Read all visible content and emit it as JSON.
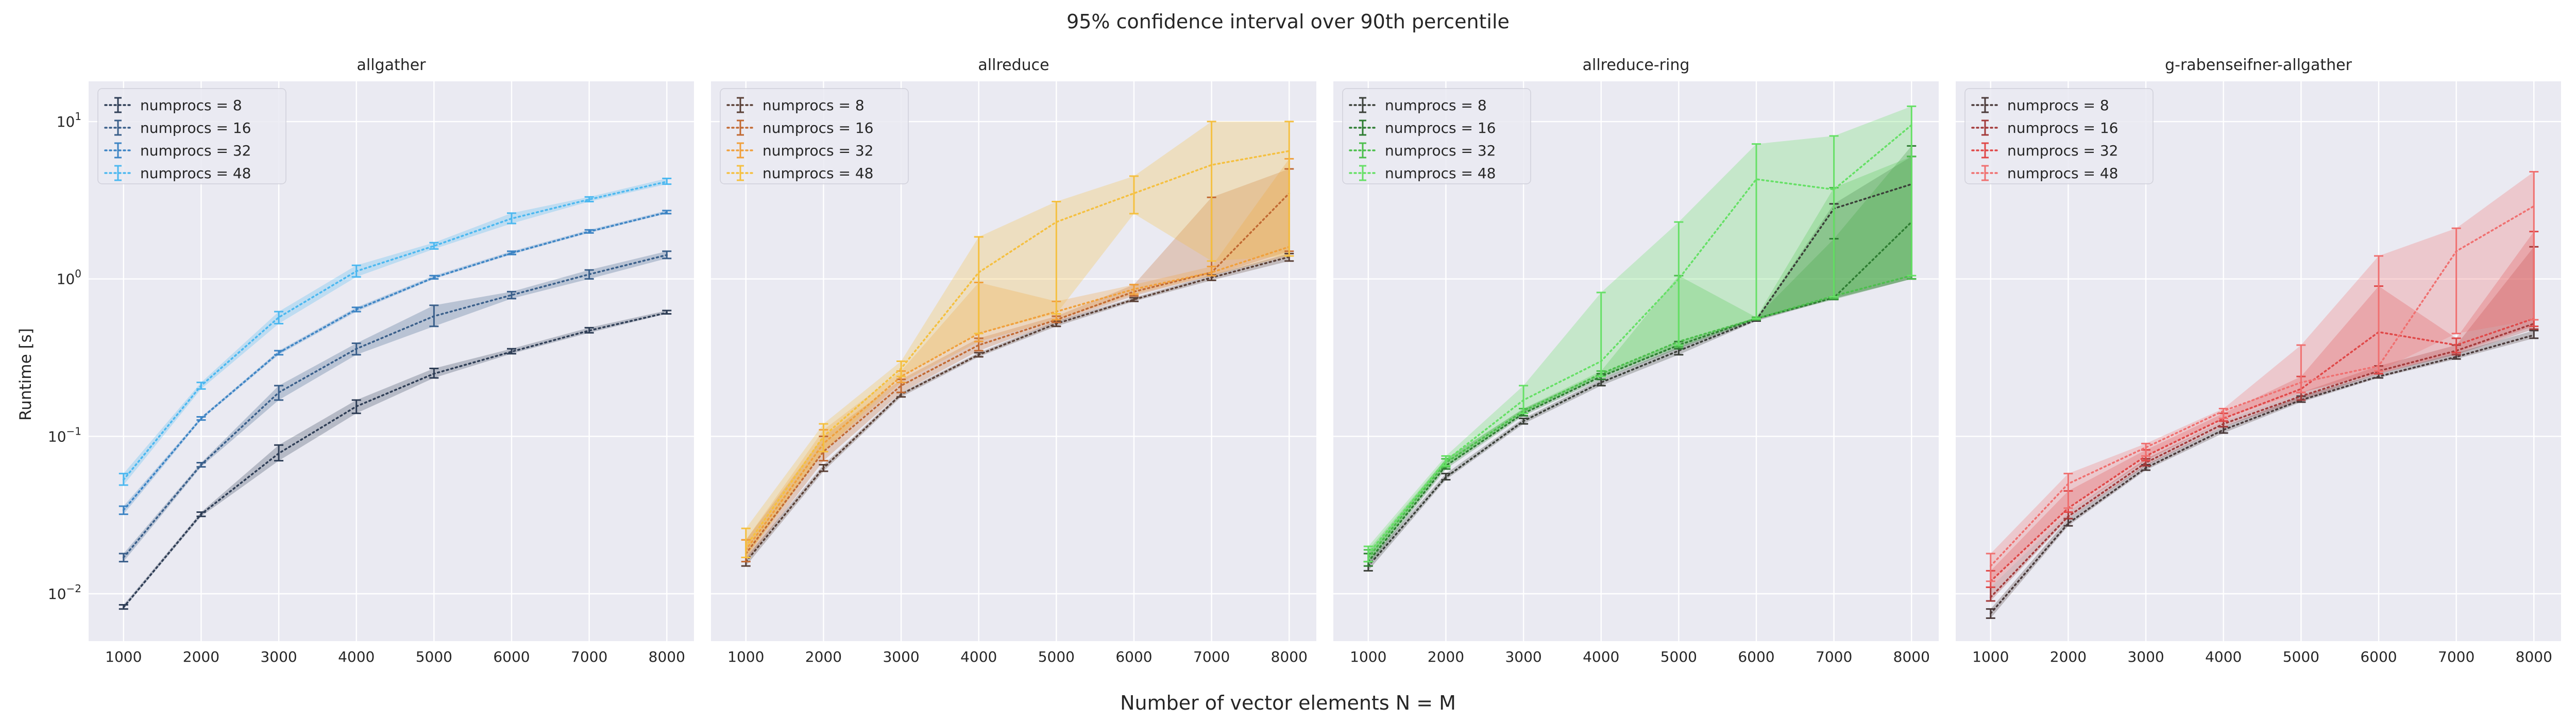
{
  "figure": {
    "suptitle": "95% confidence interval over 90th percentile",
    "xlabel": "Number of vector elements N = M",
    "ylabel": "Runtime [s]"
  },
  "chart_data": [
    {
      "type": "line",
      "title": "allgather",
      "yscale": "log",
      "ylim": [
        0.005,
        18
      ],
      "xlim": [
        550,
        8350
      ],
      "x": [
        1000,
        2000,
        3000,
        4000,
        5000,
        6000,
        7000,
        8000
      ],
      "x_ticks": [
        "1000",
        "2000",
        "3000",
        "4000",
        "5000",
        "6000",
        "7000",
        "8000"
      ],
      "y_ticks": [
        "10^-2",
        "10^-1",
        "10^0",
        "10^1"
      ],
      "grid": true,
      "legend_position": "top-left",
      "series": [
        {
          "name": "numprocs = 8",
          "color": "#2f3e56",
          "values": [
            0.0082,
            0.032,
            0.078,
            0.155,
            0.25,
            0.345,
            0.47,
            0.61
          ],
          "ci_low": [
            0.008,
            0.031,
            0.07,
            0.14,
            0.235,
            0.335,
            0.455,
            0.6
          ],
          "ci_high": [
            0.0085,
            0.033,
            0.088,
            0.17,
            0.27,
            0.36,
            0.49,
            0.63
          ]
        },
        {
          "name": "numprocs = 16",
          "color": "#3a5f8a",
          "values": [
            0.017,
            0.066,
            0.19,
            0.36,
            0.58,
            0.79,
            1.07,
            1.42
          ],
          "ci_low": [
            0.016,
            0.064,
            0.17,
            0.33,
            0.5,
            0.75,
            1.0,
            1.35
          ],
          "ci_high": [
            0.018,
            0.068,
            0.21,
            0.39,
            0.68,
            0.83,
            1.14,
            1.5
          ]
        },
        {
          "name": "numprocs = 32",
          "color": "#3d84c4",
          "values": [
            0.034,
            0.13,
            0.34,
            0.64,
            1.02,
            1.46,
            2.0,
            2.65
          ],
          "ci_low": [
            0.032,
            0.127,
            0.33,
            0.62,
            1.0,
            1.43,
            1.96,
            2.6
          ],
          "ci_high": [
            0.036,
            0.133,
            0.35,
            0.66,
            1.05,
            1.5,
            2.05,
            2.72
          ]
        },
        {
          "name": "numprocs = 48",
          "color": "#4cb8f0",
          "values": [
            0.053,
            0.21,
            0.57,
            1.12,
            1.62,
            2.42,
            3.2,
            4.15
          ],
          "ci_low": [
            0.049,
            0.2,
            0.52,
            1.03,
            1.55,
            2.25,
            3.1,
            4.0
          ],
          "ci_high": [
            0.058,
            0.22,
            0.62,
            1.22,
            1.7,
            2.62,
            3.32,
            4.35
          ]
        }
      ]
    },
    {
      "type": "line",
      "title": "allreduce",
      "yscale": "log",
      "ylim": [
        0.005,
        18
      ],
      "xlim": [
        550,
        8350
      ],
      "x": [
        1000,
        2000,
        3000,
        4000,
        5000,
        6000,
        7000,
        8000
      ],
      "x_ticks": [
        "1000",
        "2000",
        "3000",
        "4000",
        "5000",
        "6000",
        "7000",
        "8000"
      ],
      "grid": true,
      "legend_position": "top-left",
      "series": [
        {
          "name": "numprocs = 8",
          "color": "#5a4036",
          "values": [
            0.016,
            0.063,
            0.185,
            0.33,
            0.52,
            0.74,
            1.02,
            1.38
          ],
          "ci_low": [
            0.015,
            0.06,
            0.178,
            0.32,
            0.5,
            0.72,
            0.98,
            1.3
          ],
          "ci_high": [
            0.017,
            0.066,
            0.19,
            0.34,
            0.54,
            0.76,
            1.06,
            1.45
          ]
        },
        {
          "name": "numprocs = 16",
          "color": "#c26a33",
          "values": [
            0.018,
            0.08,
            0.21,
            0.38,
            0.55,
            0.83,
            1.1,
            3.5
          ],
          "ci_low": [
            0.016,
            0.07,
            0.19,
            0.35,
            0.53,
            0.78,
            1.05,
            1.5
          ],
          "ci_high": [
            0.022,
            0.1,
            0.23,
            0.42,
            0.58,
            0.92,
            3.3,
            5.0
          ]
        },
        {
          "name": "numprocs = 32",
          "color": "#f0a03c",
          "values": [
            0.019,
            0.09,
            0.24,
            0.45,
            0.62,
            0.86,
            1.1,
            1.6
          ],
          "ci_low": [
            0.017,
            0.08,
            0.22,
            0.4,
            0.55,
            0.8,
            1.05,
            1.4
          ],
          "ci_high": [
            0.022,
            0.11,
            0.26,
            0.95,
            0.72,
            0.92,
            1.2,
            5.8
          ]
        },
        {
          "name": "numprocs = 48",
          "color": "#f5c040",
          "values": [
            0.02,
            0.1,
            0.27,
            1.1,
            2.3,
            3.5,
            5.3,
            6.5
          ],
          "ci_low": [
            0.017,
            0.08,
            0.24,
            0.45,
            0.6,
            2.6,
            1.3,
            1.4
          ],
          "ci_high": [
            0.026,
            0.12,
            0.3,
            1.85,
            3.1,
            4.5,
            10.0,
            10.0
          ]
        }
      ]
    },
    {
      "type": "line",
      "title": "allreduce-ring",
      "yscale": "log",
      "ylim": [
        0.005,
        18
      ],
      "xlim": [
        550,
        8350
      ],
      "x": [
        1000,
        2000,
        3000,
        4000,
        5000,
        6000,
        7000,
        8000
      ],
      "x_ticks": [
        "1000",
        "2000",
        "3000",
        "4000",
        "5000",
        "6000",
        "7000",
        "8000"
      ],
      "grid": true,
      "legend_position": "top-left",
      "series": [
        {
          "name": "numprocs = 8",
          "color": "#3a3f38",
          "values": [
            0.015,
            0.055,
            0.125,
            0.22,
            0.35,
            0.55,
            2.8,
            4.0
          ],
          "ci_low": [
            0.014,
            0.053,
            0.12,
            0.21,
            0.33,
            0.54,
            0.75,
            1.0
          ],
          "ci_high": [
            0.016,
            0.058,
            0.13,
            0.23,
            0.37,
            0.56,
            3.0,
            6.0
          ]
        },
        {
          "name": "numprocs = 16",
          "color": "#2e7d32",
          "values": [
            0.016,
            0.065,
            0.14,
            0.24,
            0.38,
            0.56,
            0.76,
            2.3
          ],
          "ci_low": [
            0.015,
            0.062,
            0.135,
            0.23,
            0.36,
            0.55,
            0.74,
            1.0
          ],
          "ci_high": [
            0.018,
            0.072,
            0.15,
            0.25,
            0.4,
            0.57,
            1.8,
            7.0
          ]
        },
        {
          "name": "numprocs = 32",
          "color": "#4cbf4c",
          "values": [
            0.017,
            0.068,
            0.145,
            0.25,
            0.4,
            0.56,
            0.78,
            1.05
          ],
          "ci_low": [
            0.016,
            0.064,
            0.14,
            0.24,
            0.37,
            0.55,
            0.75,
            1.0
          ],
          "ci_high": [
            0.019,
            0.072,
            0.15,
            0.26,
            1.05,
            0.57,
            3.8,
            6.0
          ]
        },
        {
          "name": "numprocs = 48",
          "color": "#66e066",
          "values": [
            0.018,
            0.07,
            0.17,
            0.3,
            1.0,
            4.3,
            3.7,
            9.5
          ],
          "ci_low": [
            0.016,
            0.065,
            0.14,
            0.24,
            0.38,
            0.56,
            0.77,
            1.05
          ],
          "ci_high": [
            0.02,
            0.075,
            0.21,
            0.82,
            2.3,
            7.2,
            8.1,
            12.5
          ]
        }
      ]
    },
    {
      "type": "line",
      "title": "g-rabenseifner-allgather",
      "yscale": "log",
      "ylim": [
        0.005,
        18
      ],
      "xlim": [
        550,
        8350
      ],
      "x": [
        1000,
        2000,
        3000,
        4000,
        5000,
        6000,
        7000,
        8000
      ],
      "x_ticks": [
        "1000",
        "2000",
        "3000",
        "4000",
        "5000",
        "6000",
        "7000",
        "8000"
      ],
      "grid": true,
      "legend_position": "top-left",
      "series": [
        {
          "name": "numprocs = 8",
          "color": "#4a3a3a",
          "values": [
            0.0075,
            0.028,
            0.063,
            0.11,
            0.17,
            0.24,
            0.32,
            0.44
          ],
          "ci_low": [
            0.007,
            0.027,
            0.061,
            0.105,
            0.165,
            0.235,
            0.31,
            0.42
          ],
          "ci_high": [
            0.008,
            0.03,
            0.066,
            0.115,
            0.18,
            0.25,
            0.34,
            0.47
          ]
        },
        {
          "name": "numprocs = 16",
          "color": "#a33a3a",
          "values": [
            0.0095,
            0.031,
            0.068,
            0.12,
            0.18,
            0.26,
            0.35,
            0.52
          ],
          "ci_low": [
            0.009,
            0.03,
            0.065,
            0.115,
            0.17,
            0.25,
            0.33,
            0.48
          ],
          "ci_high": [
            0.011,
            0.033,
            0.072,
            0.125,
            0.19,
            0.28,
            0.38,
            1.6
          ]
        },
        {
          "name": "numprocs = 32",
          "color": "#e04848",
          "values": [
            0.012,
            0.035,
            0.075,
            0.13,
            0.2,
            0.46,
            0.38,
            0.56
          ],
          "ci_low": [
            0.011,
            0.033,
            0.07,
            0.125,
            0.19,
            0.25,
            0.34,
            0.5
          ],
          "ci_high": [
            0.014,
            0.045,
            0.082,
            0.14,
            0.24,
            0.9,
            0.42,
            2.0
          ]
        },
        {
          "name": "numprocs = 48",
          "color": "#f07070",
          "values": [
            0.015,
            0.05,
            0.085,
            0.145,
            0.22,
            0.28,
            1.5,
            2.9
          ],
          "ci_low": [
            0.012,
            0.035,
            0.075,
            0.13,
            0.19,
            0.26,
            0.45,
            0.55
          ],
          "ci_high": [
            0.018,
            0.058,
            0.09,
            0.15,
            0.38,
            1.4,
            2.1,
            4.8
          ]
        }
      ]
    }
  ]
}
